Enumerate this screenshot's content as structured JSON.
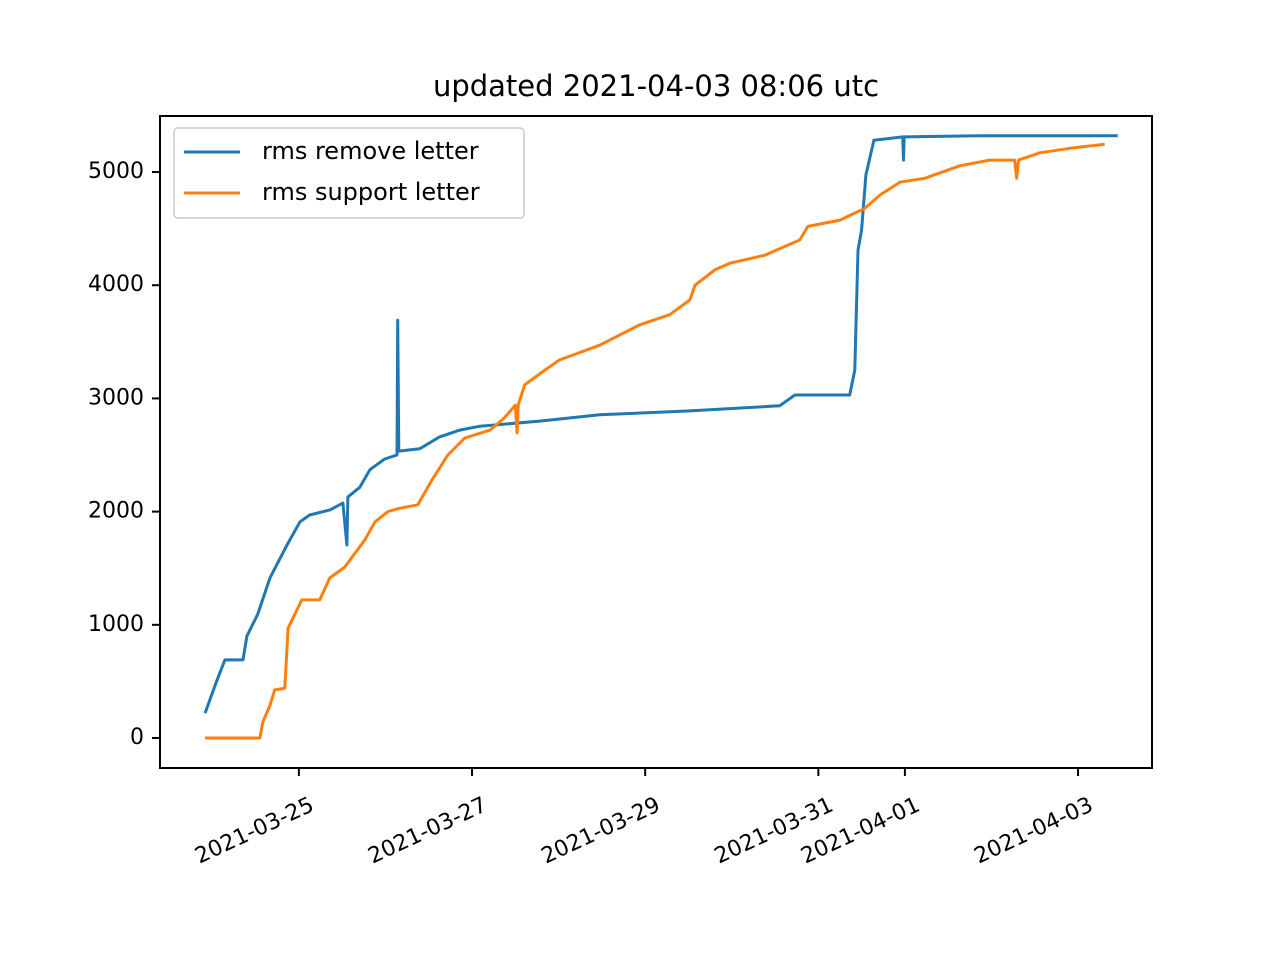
{
  "chart_data": {
    "type": "line",
    "title": "updated 2021-04-03 08:06 utc",
    "series": [
      {
        "name": "rms remove letter",
        "color": "#1f77b4",
        "x": [
          "2021-03-23 22:00",
          "2021-03-24 01:00",
          "2021-03-24 03:30",
          "2021-03-24 08:30",
          "2021-03-24 09:36",
          "2021-03-24 12:36",
          "2021-03-24 16:00",
          "2021-03-24 20:42",
          "2021-03-25 00:18",
          "2021-03-25 03:00",
          "2021-03-25 08:36",
          "2021-03-25 12:12",
          "2021-03-25 13:18",
          "2021-03-25 13:36",
          "2021-03-25 16:54",
          "2021-03-25 19:42",
          "2021-03-25 23:48",
          "2021-03-26 03:12",
          "2021-03-26 03:24",
          "2021-03-26 03:42",
          "2021-03-26 09:30",
          "2021-03-26 15:00",
          "2021-03-26 20:36",
          "2021-03-27 02:12",
          "2021-03-27 18:48",
          "2021-03-28 11:24",
          "2021-03-29 12:24",
          "2021-03-30 13:18",
          "2021-03-30 17:30",
          "2021-03-31 08:42",
          "2021-03-31 10:06",
          "2021-03-31 11:00",
          "2021-03-31 12:00",
          "2021-03-31 13:12",
          "2021-03-31 15:24",
          "2021-03-31 20:24",
          "2021-03-31 23:24",
          "2021-03-31 23:36",
          "2021-03-31 23:48",
          "2021-04-01 20:42",
          "2021-04-03 11:00"
        ],
        "values": [
          220,
          485,
          690,
          690,
          900,
          1095,
          1415,
          1705,
          1910,
          1970,
          2015,
          2075,
          1705,
          2130,
          2215,
          2370,
          2465,
          2500,
          3690,
          2535,
          2555,
          2660,
          2720,
          2755,
          2800,
          2855,
          2890,
          2935,
          3030,
          3030,
          3250,
          4310,
          4490,
          4975,
          5280,
          5300,
          5310,
          5105,
          5310,
          5320,
          5320
        ]
      },
      {
        "name": "rms support letter",
        "color": "#ff7f0e",
        "x": [
          "2021-03-23 22:00",
          "2021-03-24 13:12",
          "2021-03-24 14:00",
          "2021-03-24 16:00",
          "2021-03-24 17:18",
          "2021-03-24 20:06",
          "2021-03-24 21:00",
          "2021-03-25 00:48",
          "2021-03-25 05:48",
          "2021-03-25 08:36",
          "2021-03-25 12:42",
          "2021-03-25 18:18",
          "2021-03-25 21:06",
          "2021-03-26 00:42",
          "2021-03-26 04:00",
          "2021-03-26 09:00",
          "2021-03-26 12:54",
          "2021-03-26 17:18",
          "2021-03-26 22:00",
          "2021-03-27 05:00",
          "2021-03-27 09:00",
          "2021-03-27 12:00",
          "2021-03-27 12:30",
          "2021-03-27 12:48",
          "2021-03-27 14:36",
          "2021-03-27 20:12",
          "2021-03-28 00:18",
          "2021-03-28 11:24",
          "2021-03-28 22:30",
          "2021-03-29 06:48",
          "2021-03-29 12:24",
          "2021-03-29 13:48",
          "2021-03-29 19:18",
          "2021-03-29 23:30",
          "2021-03-30 09:12",
          "2021-03-30 18:54",
          "2021-03-30 21:06",
          "2021-03-31 06:00",
          "2021-03-31 12:54",
          "2021-03-31 17:00",
          "2021-03-31 22:36",
          "2021-04-01 05:30",
          "2021-04-01 15:12",
          "2021-04-01 23:30",
          "2021-04-02 06:24",
          "2021-04-02 07:00",
          "2021-04-02 07:30",
          "2021-04-02 13:24",
          "2021-04-02 21:42",
          "2021-04-03 07:24"
        ],
        "values": [
          0,
          0,
          140,
          290,
          425,
          440,
          970,
          1220,
          1220,
          1415,
          1510,
          1750,
          1910,
          2000,
          2030,
          2060,
          2280,
          2500,
          2650,
          2720,
          2830,
          2940,
          2695,
          2940,
          3120,
          3250,
          3340,
          3470,
          3650,
          3740,
          3870,
          4000,
          4135,
          4195,
          4265,
          4400,
          4520,
          4575,
          4680,
          4795,
          4910,
          4945,
          5055,
          5105,
          5105,
          4945,
          5105,
          5170,
          5210,
          5245
        ]
      }
    ],
    "xlim": [
      "2021-03-23 09:30",
      "2021-04-03 20:30"
    ],
    "xticks": [
      "2021-03-25",
      "2021-03-27",
      "2021-03-29",
      "2021-03-31",
      "2021-04-01",
      "2021-04-03"
    ],
    "ylim": [
      -265,
      5495
    ],
    "yticks": [
      0,
      1000,
      2000,
      3000,
      4000,
      5000
    ],
    "legend": "upper left"
  }
}
